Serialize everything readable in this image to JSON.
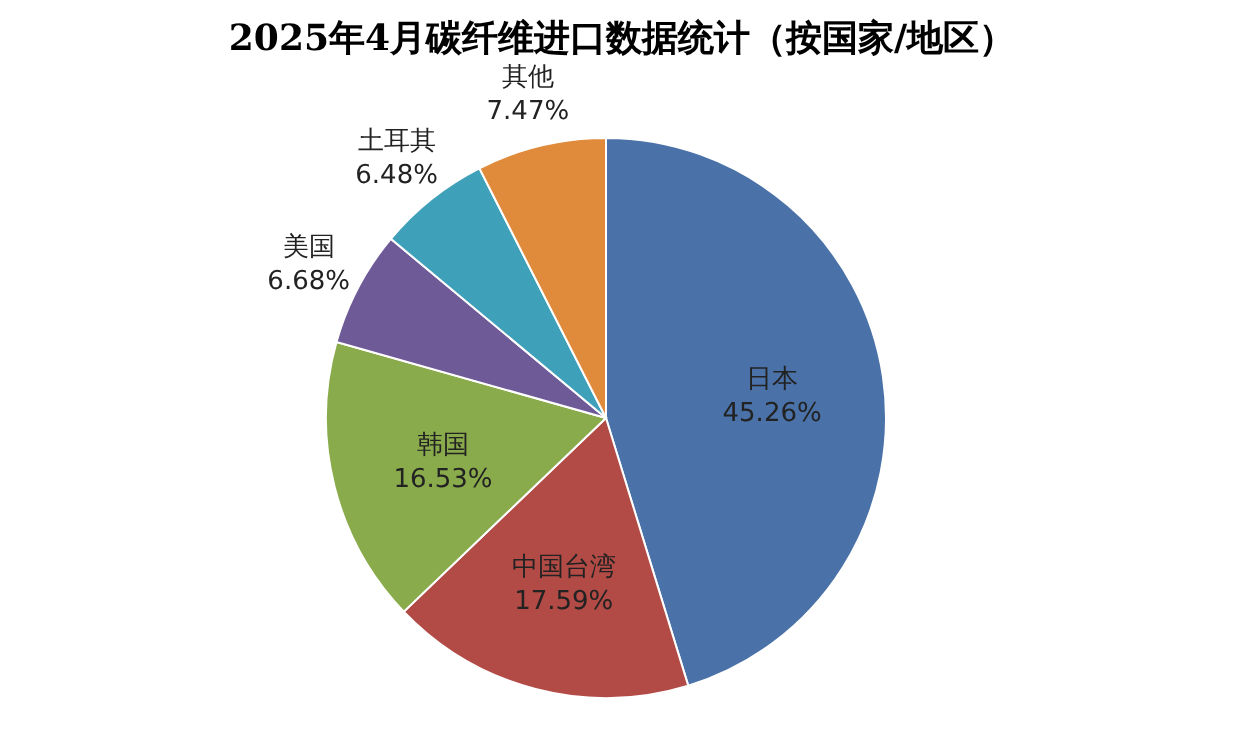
{
  "chart_data": {
    "type": "pie",
    "title": "2025年4月碳纤维进口数据统计（按国家/地区）",
    "categories": [
      "日本",
      "中国台湾",
      "韩国",
      "美国",
      "土耳其",
      "其他"
    ],
    "values": [
      45.26,
      17.59,
      16.53,
      6.68,
      6.48,
      7.47
    ],
    "colors": [
      "#4a72a8",
      "#b24a45",
      "#8aab4c",
      "#6e5a97",
      "#3fa0b9",
      "#e08a3c"
    ],
    "value_labels": [
      "45.26%",
      "17.59%",
      "16.53%",
      "6.68%",
      "6.48%",
      "7.47%"
    ],
    "legend": false
  }
}
